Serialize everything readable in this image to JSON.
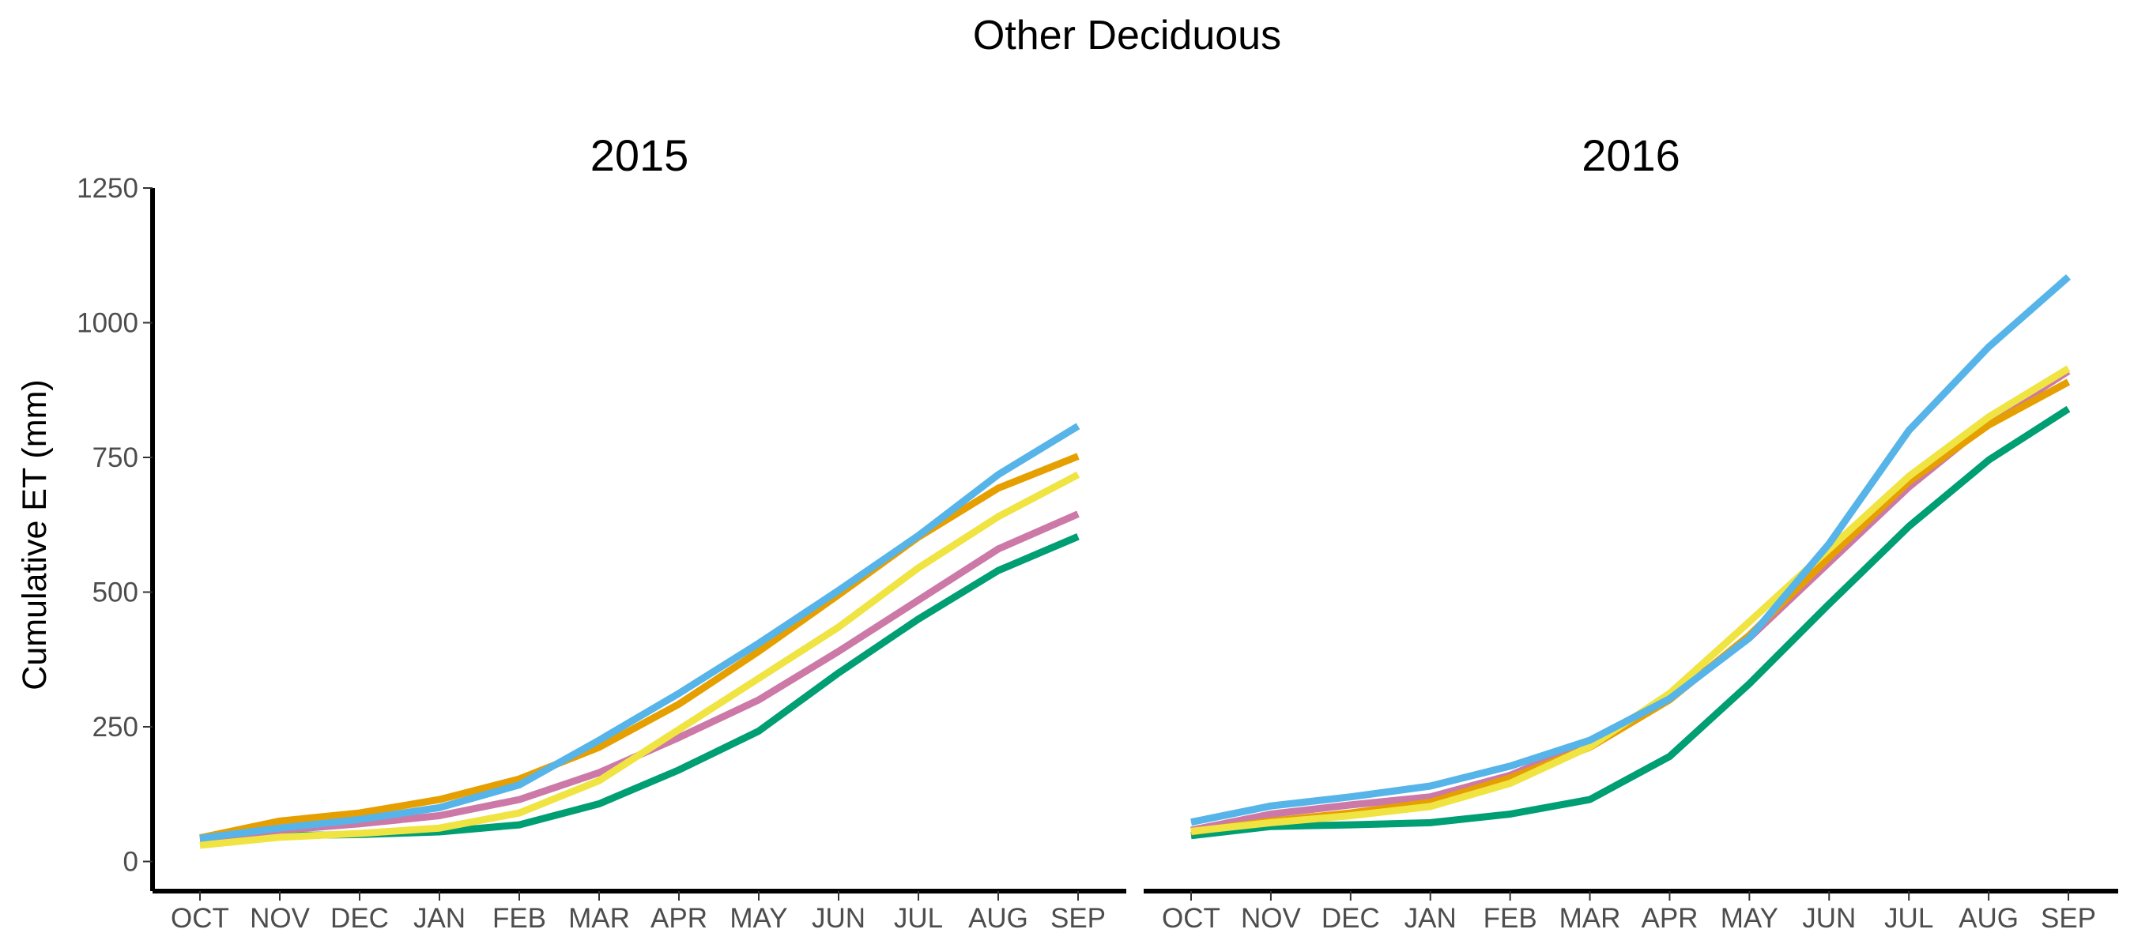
{
  "chart_data": {
    "type": "line",
    "title": "Other Deciduous",
    "ylabel": "Cumulative ET (mm)",
    "xlabel": "",
    "ylim": [
      -55,
      1250
    ],
    "yticks": [
      0,
      250,
      500,
      750,
      1000,
      1250
    ],
    "categories": [
      "OCT",
      "NOV",
      "DEC",
      "JAN",
      "FEB",
      "MAR",
      "APR",
      "MAY",
      "JUN",
      "JUL",
      "AUG",
      "SEP"
    ],
    "legend": "none",
    "grid": false,
    "panels": [
      {
        "title": "2015",
        "series": [
          {
            "color": "#009E73",
            "values": [
              43,
              48,
              50,
              55,
              68,
              107,
              170,
              242,
              350,
              450,
              540,
              603
            ]
          },
          {
            "color": "#CC79A7",
            "values": [
              40,
              58,
              70,
              85,
              115,
              165,
              230,
              300,
              390,
              485,
              580,
              645
            ]
          },
          {
            "color": "#F0E442",
            "values": [
              30,
              45,
              52,
              62,
              90,
              150,
              245,
              340,
              435,
              545,
              640,
              718
            ]
          },
          {
            "color": "#E69F00",
            "values": [
              44,
              75,
              90,
              115,
              153,
              212,
              292,
              390,
              495,
              602,
              693,
              752
            ]
          },
          {
            "color": "#56B4E9",
            "values": [
              43,
              62,
              78,
              100,
              142,
              225,
              312,
              405,
              503,
              605,
              718,
              808
            ]
          }
        ]
      },
      {
        "title": "2016",
        "series": [
          {
            "color": "#009E73",
            "values": [
              48,
              65,
              68,
              72,
              88,
              115,
              195,
              330,
              478,
              622,
              745,
              840
            ]
          },
          {
            "color": "#CC79A7",
            "values": [
              58,
              88,
              105,
              120,
              160,
              222,
              305,
              415,
              555,
              695,
              815,
              910
            ]
          },
          {
            "color": "#E69F00",
            "values": [
              55,
              75,
              90,
              110,
              155,
              212,
              300,
              420,
              565,
              705,
              810,
              890
            ]
          },
          {
            "color": "#F0E442",
            "values": [
              56,
              72,
              85,
              102,
              145,
              213,
              312,
              445,
              580,
              715,
              825,
              915
            ]
          },
          {
            "color": "#56B4E9",
            "values": [
              73,
              103,
              120,
              140,
              177,
              225,
              302,
              415,
              590,
              800,
              955,
              1085
            ]
          }
        ]
      }
    ]
  }
}
